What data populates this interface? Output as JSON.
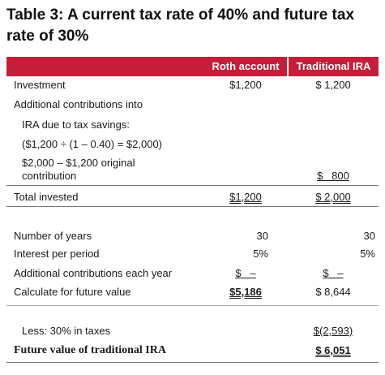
{
  "title": {
    "line1": "Table 3: A current tax rate of 40% and future tax",
    "line2": "rate of 30%"
  },
  "columns": {
    "roth": "Roth account",
    "traditional": "Traditional IRA"
  },
  "rows": {
    "investment": {
      "label": "Investment",
      "roth": "$1,200",
      "trad": "$ 1,200"
    },
    "additional_contrib": {
      "label": "Additional contributions into"
    },
    "ira_due": {
      "label": "IRA due to tax savings:"
    },
    "formula": {
      "label": "($1,200 ÷ (1 – 0.40) = $2,000)"
    },
    "original_line1": {
      "label": "$2,000 – $1,200 original"
    },
    "original_line2": {
      "label": "contribution",
      "trad": "$   800"
    },
    "total_invested": {
      "label": "Total invested",
      "roth": "$1,200",
      "trad": "$ 2,000"
    },
    "years": {
      "label": "Number of years",
      "roth": "30",
      "trad": "30"
    },
    "interest": {
      "label": "Interest per period",
      "roth": "5%",
      "trad": "5%"
    },
    "each_year": {
      "label": "Additional contributions each year",
      "roth": "$   –",
      "trad": "$   –"
    },
    "future_value": {
      "label": "Calculate for future value",
      "roth": "$5,186",
      "trad": "$ 8,644"
    },
    "less_taxes": {
      "label": "Less: 30% in taxes",
      "trad": "$(2,593)"
    },
    "fv_traditional": {
      "label": "Future value of traditional IRA",
      "trad": "$ 6,051"
    }
  }
}
